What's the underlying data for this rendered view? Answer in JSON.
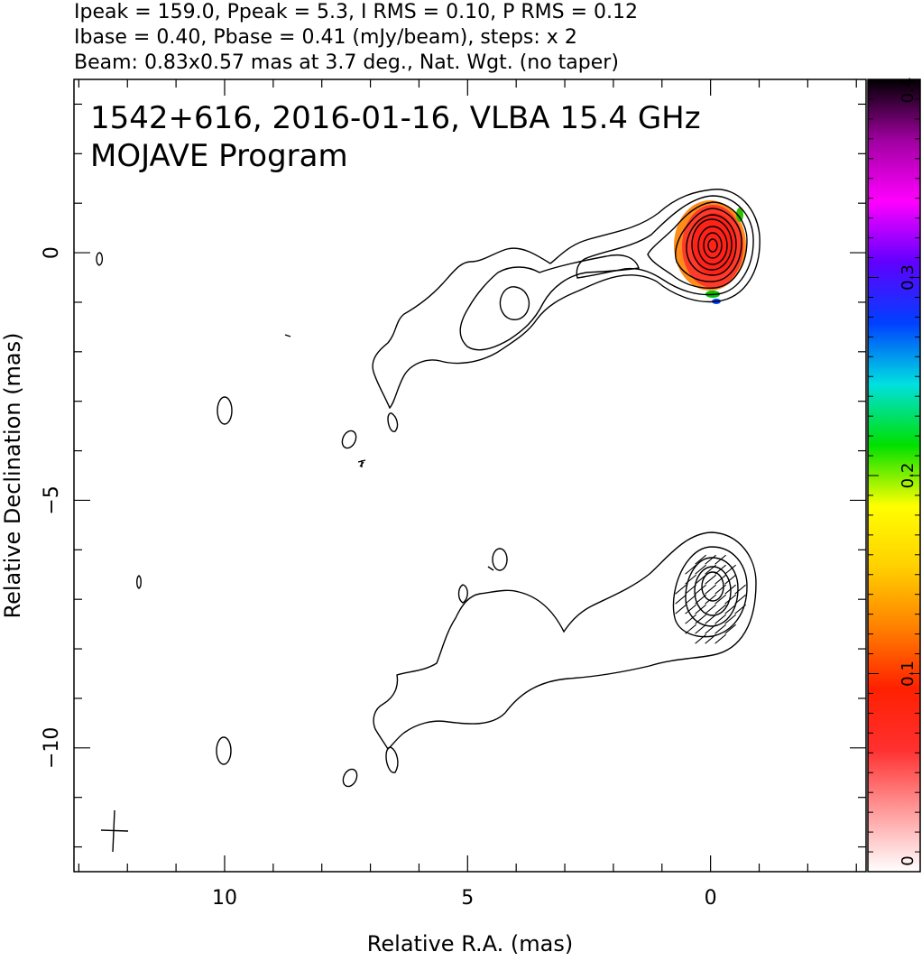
{
  "header": {
    "line1": "Ipeak = 159.0, Ppeak = 5.3, I RMS = 0.10, P RMS = 0.12",
    "line2": "Ibase = 0.40, Pbase = 0.41 (mJy/beam), steps: x 2",
    "line3": "Beam: 0.83x0.57 mas at 3.7 deg., Nat. Wgt. (no taper)"
  },
  "chart_data": {
    "type": "contour",
    "title": "1542+616, 2016-01-16, VLBA 15.4 GHz",
    "subtitle": "MOJAVE Program",
    "xlabel": "Relative R.A. (mas)",
    "ylabel": "Relative Declination (mas)",
    "xlim": [
      13.1,
      -3.2
    ],
    "ylim": [
      -12.5,
      3.5
    ],
    "x_ticks": [
      10,
      5,
      0
    ],
    "x_tick_labels": [
      "10",
      "5",
      "0"
    ],
    "y_ticks": [
      0,
      -5,
      -10
    ],
    "y_tick_labels": [
      "0",
      "−5",
      "−10"
    ],
    "colorbar": {
      "range": [
        0,
        0.4
      ],
      "ticks": [
        0,
        0.1,
        0.2,
        0.3,
        0.4
      ],
      "tick_labels": [
        "0",
        "0.1",
        "0.2",
        "0.3",
        "0.4"
      ],
      "colors": [
        "#ffffff",
        "#ff9a9a",
        "#ff3030",
        "#ff2000",
        "#ff8000",
        "#ffd000",
        "#ffff00",
        "#00e000",
        "#00e0e0",
        "#0040ff",
        "#6000ff",
        "#ff00ff",
        "#a000a0",
        "#000000"
      ]
    },
    "panels": [
      {
        "name": "upper",
        "core": [
          0,
          0
        ],
        "contour_levels": [
          0.4,
          0.8,
          1.6,
          3.2,
          6.4,
          12.8,
          25.6,
          51.2,
          102.4
        ],
        "polarization_patch": {
          "x_range": [
            -0.6,
            0.9
          ],
          "y_range": [
            -1.1,
            0.9
          ]
        }
      },
      {
        "name": "lower",
        "core": [
          0,
          -7
        ],
        "evpa": true
      }
    ],
    "beam": {
      "major_mas": 0.83,
      "minor_mas": 0.57,
      "pa_deg": 3.7
    }
  }
}
